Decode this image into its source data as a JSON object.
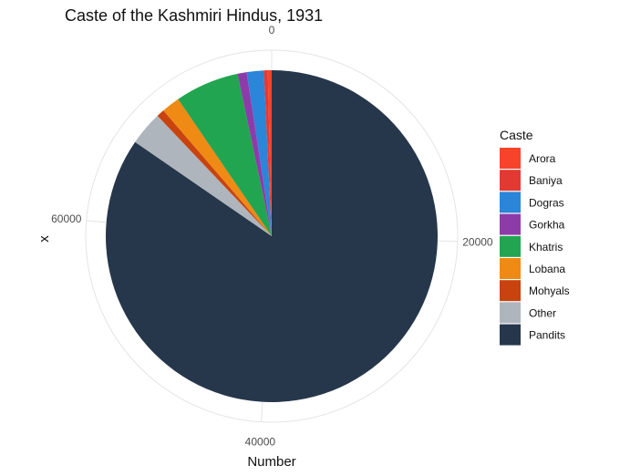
{
  "chart_data": {
    "type": "pie",
    "title": "Caste of the Kashmiri Hindus, 1931",
    "xlabel": "Number",
    "ylabel": "x",
    "legend_title": "Caste",
    "legend_position": "right",
    "grid": true,
    "total_range": [
      0,
      78600
    ],
    "ticks": [
      "0",
      "20000",
      "40000",
      "60000"
    ],
    "tick_values": [
      0,
      20000,
      40000,
      60000
    ],
    "categories": [
      "Arora",
      "Baniya",
      "Dogras",
      "Gorkha",
      "Khatris",
      "Lobana",
      "Mohyals",
      "Other",
      "Pandits"
    ],
    "values": [
      300,
      300,
      1300,
      700,
      4900,
      1400,
      600,
      2600,
      66500
    ],
    "colors": [
      "#F8432B",
      "#E23A33",
      "#2B85D8",
      "#8E3BAA",
      "#22A550",
      "#EF8A14",
      "#C8430E",
      "#AEB5BC",
      "#26374B"
    ]
  }
}
